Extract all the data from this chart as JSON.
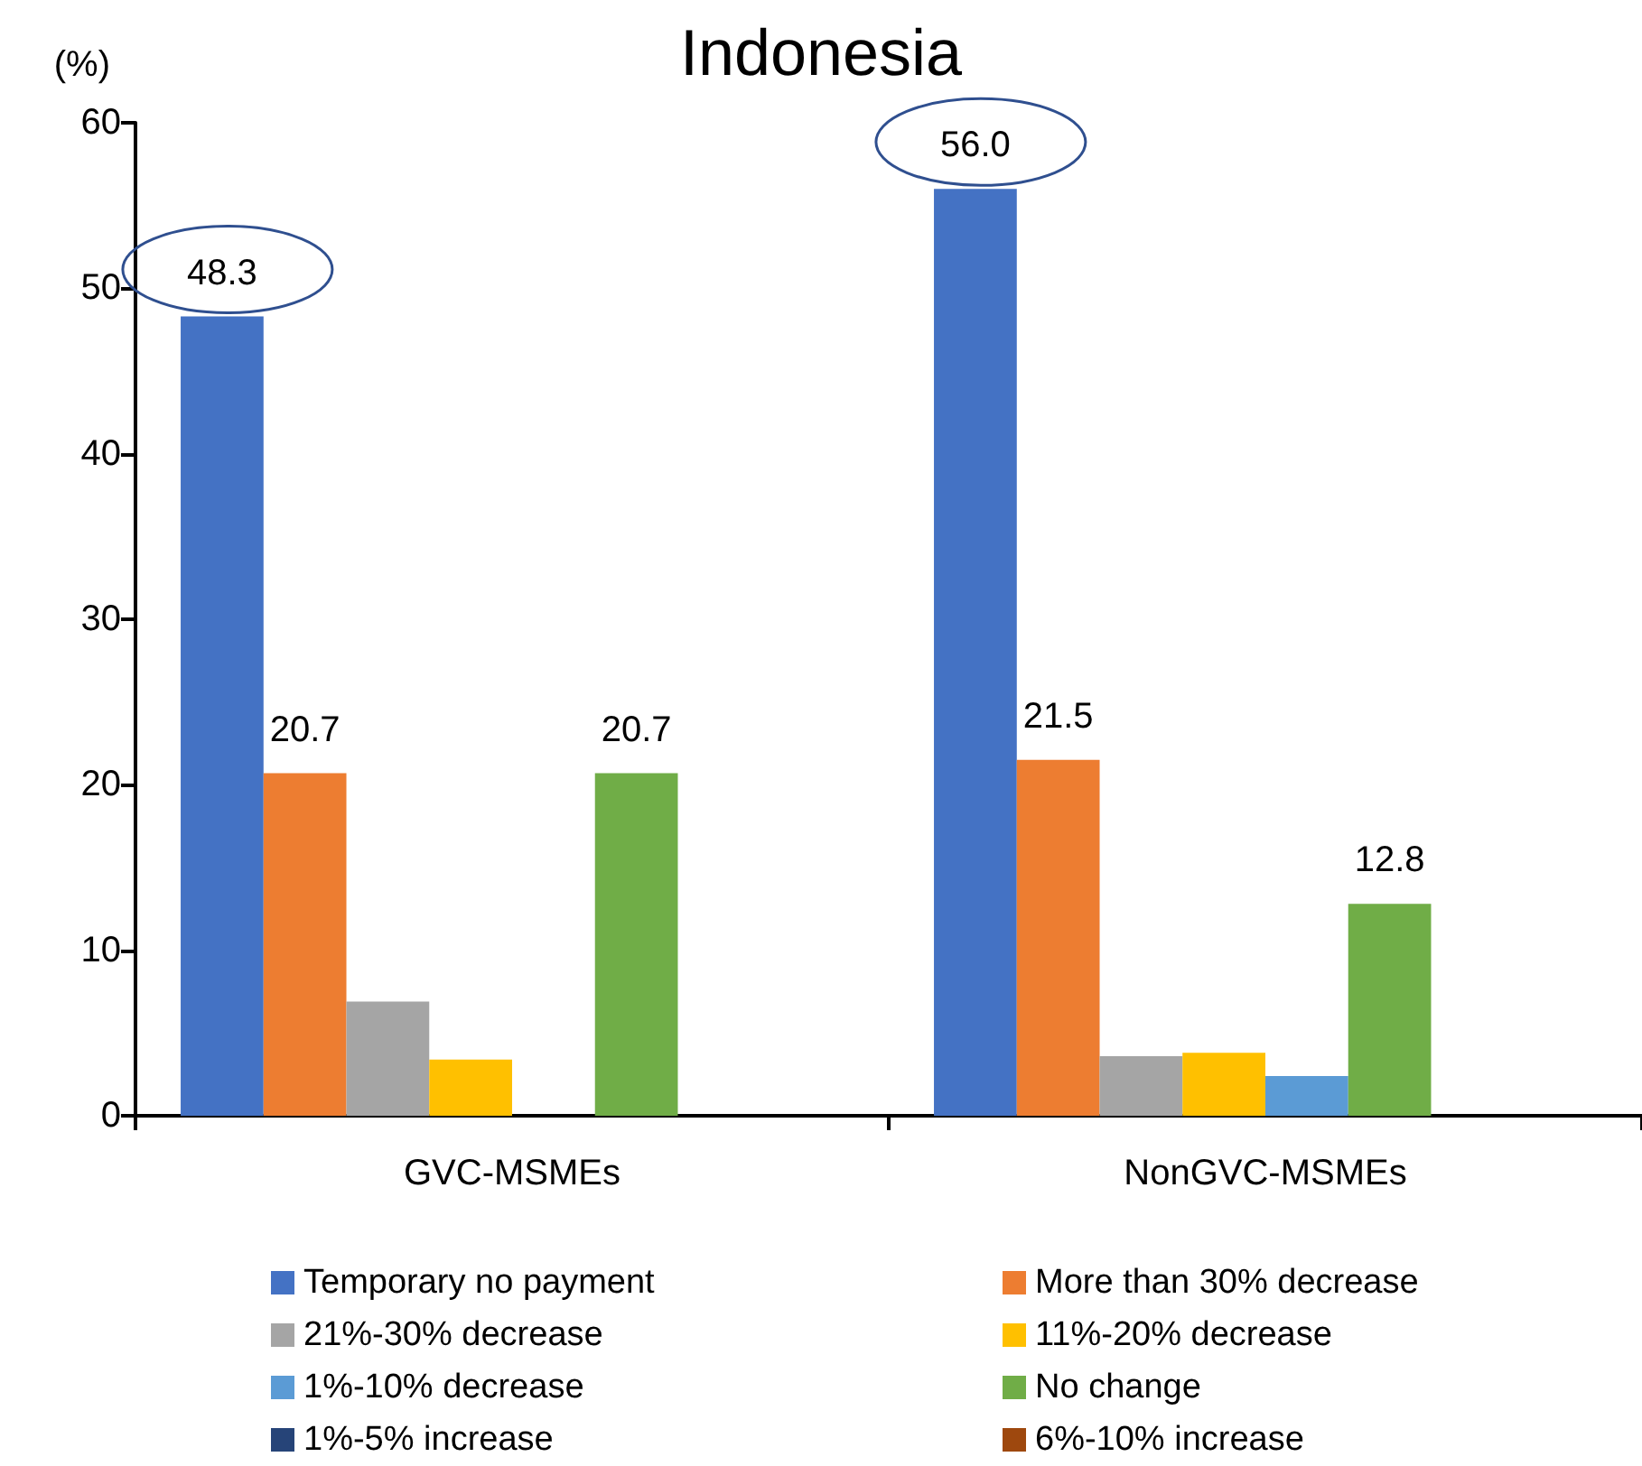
{
  "chart_data": {
    "type": "bar",
    "title": "Indonesia",
    "ylabel": "(%)",
    "categories": [
      "GVC-MSMEs",
      "NonGVC-MSMEs"
    ],
    "ylim": [
      0,
      60
    ],
    "yticks": [
      0,
      10,
      20,
      30,
      40,
      50,
      60
    ],
    "grid": false,
    "legend": "bottom",
    "series": [
      {
        "name": "Temporary no payment",
        "color": "#4472c4",
        "values": [
          48.3,
          56.0
        ],
        "value_labels": [
          "48.3",
          "56.0"
        ]
      },
      {
        "name": "More than 30% decrease",
        "color": "#ed7d31",
        "values": [
          20.7,
          21.5
        ],
        "value_labels": [
          "20.7",
          "21.5"
        ]
      },
      {
        "name": "21%-30% decrease",
        "color": "#a5a5a5",
        "values": [
          6.9,
          3.6
        ]
      },
      {
        "name": "11%-20% decrease",
        "color": "#ffc000",
        "values": [
          3.4,
          3.8
        ]
      },
      {
        "name": "1%-10% decrease",
        "color": "#5b9bd5",
        "values": [
          0,
          2.4
        ]
      },
      {
        "name": "No change",
        "color": "#70ad47",
        "values": [
          20.7,
          12.8
        ],
        "value_labels": [
          "20.7",
          "12.8"
        ]
      },
      {
        "name": "1%-5% increase",
        "color": "#264478",
        "values": [
          0,
          0
        ]
      },
      {
        "name": "6%-10% increase",
        "color": "#9e480e",
        "values": [
          0,
          0
        ]
      }
    ]
  }
}
